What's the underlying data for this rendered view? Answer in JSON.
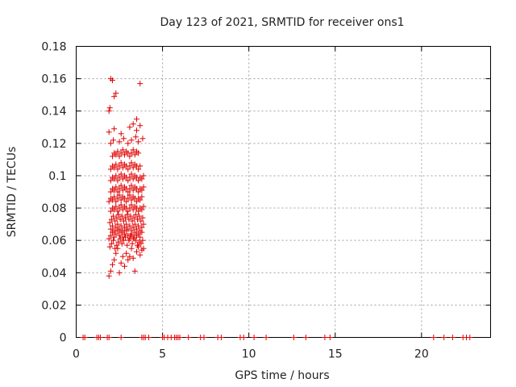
{
  "chart_data": {
    "type": "scatter",
    "title": "Day 123 of 2021, SRMTID for receiver ons1",
    "xlabel": "GPS time / hours",
    "ylabel": "SRMTID / TECUs",
    "xlim": [
      0,
      24
    ],
    "ylim": [
      0,
      0.18
    ],
    "xticks": [
      0,
      5,
      10,
      15,
      20
    ],
    "xtick_labels": [
      "0",
      "5",
      "10",
      "15",
      "20"
    ],
    "yticks": [
      0,
      0.02,
      0.04,
      0.06,
      0.08,
      0.1,
      0.12,
      0.14,
      0.16,
      0.18
    ],
    "ytick_labels": [
      "0",
      "0.02",
      "0.04",
      "0.06",
      "0.08",
      "0.1",
      "0.12",
      "0.14",
      "0.16",
      "0.18"
    ],
    "grid": true,
    "marker": "+",
    "colors": {
      "points": "#e00000",
      "grid": "#a0a0a0",
      "axes": "#000000"
    },
    "series": [
      {
        "x": [
          0.4,
          0.5,
          1.2,
          1.3,
          1.4,
          1.8,
          1.9,
          2.6,
          3.8,
          3.9,
          4.0,
          4.2,
          5.0,
          5.1,
          5.3,
          5.5,
          5.7,
          5.8,
          5.9,
          6.0,
          6.5,
          7.2,
          7.4,
          8.2,
          8.4,
          9.5,
          9.7,
          10.3,
          11.0,
          12.6,
          13.3,
          14.4,
          14.7,
          20.7,
          21.3,
          21.8,
          22.4,
          22.6,
          22.8,
          1.9,
          2.0,
          2.1,
          2.2,
          2.3,
          2.4,
          2.5,
          2.6,
          2.7,
          2.8,
          2.9,
          3.0,
          3.1,
          3.2,
          3.3,
          3.4,
          3.5,
          3.6,
          3.7,
          3.8,
          3.9,
          1.95,
          2.05,
          2.15,
          2.25,
          2.35,
          2.45,
          2.55,
          2.65,
          2.75,
          2.85,
          2.95,
          3.05,
          3.15,
          3.25,
          3.35,
          3.45,
          3.55,
          3.65,
          3.75,
          3.85,
          1.9,
          2.0,
          2.1,
          2.2,
          2.3,
          2.4,
          2.5,
          2.6,
          2.7,
          2.8,
          2.9,
          3.0,
          3.1,
          3.2,
          3.3,
          3.4,
          3.5,
          3.6,
          3.7,
          3.8,
          2.0,
          2.1,
          2.2,
          2.3,
          2.4,
          2.5,
          2.6,
          2.7,
          2.8,
          2.9,
          3.0,
          3.1,
          3.2,
          3.3,
          3.4,
          3.5,
          3.6,
          3.7,
          3.8,
          3.9,
          1.95,
          2.05,
          2.15,
          2.25,
          2.35,
          2.45,
          2.55,
          2.65,
          2.75,
          2.85,
          2.95,
          3.05,
          3.15,
          3.25,
          3.35,
          3.45,
          3.55,
          3.65,
          3.75,
          3.85,
          2.0,
          2.1,
          2.2,
          2.3,
          2.4,
          2.5,
          2.6,
          2.7,
          2.8,
          2.9,
          3.0,
          3.1,
          3.2,
          3.3,
          3.4,
          3.5,
          3.6,
          3.7,
          3.8,
          3.9,
          1.9,
          2.0,
          2.1,
          2.2,
          2.3,
          2.4,
          2.5,
          2.6,
          2.7,
          2.8,
          2.9,
          3.0,
          3.1,
          3.2,
          3.3,
          3.4,
          3.5,
          3.6,
          3.7,
          3.8,
          2.0,
          2.1,
          2.2,
          2.3,
          2.4,
          2.5,
          2.6,
          2.7,
          2.8,
          2.9,
          3.0,
          3.1,
          3.2,
          3.3,
          3.4,
          3.5,
          3.6,
          3.7,
          3.8,
          3.9,
          2.0,
          2.1,
          2.2,
          2.3,
          2.4,
          2.5,
          2.6,
          2.7,
          2.8,
          2.9,
          3.0,
          3.1,
          3.2,
          3.3,
          3.4,
          3.5,
          3.6,
          3.7,
          3.8,
          3.9,
          2.0,
          2.1,
          2.2,
          2.3,
          2.4,
          2.5,
          2.6,
          2.7,
          2.8,
          2.9,
          3.0,
          3.1,
          3.2,
          3.3,
          3.4,
          3.5,
          3.6,
          3.7,
          2.1,
          2.2,
          2.3,
          2.4,
          2.5,
          2.6,
          2.7,
          2.8,
          2.9,
          3.0,
          3.1,
          3.2,
          3.3,
          3.4,
          3.5,
          3.6,
          2.0,
          2.15,
          2.5,
          2.75,
          3.0,
          3.2,
          3.45,
          3.6,
          3.85,
          1.9,
          2.2,
          2.6,
          3.1,
          3.5,
          3.7,
          1.9,
          1.95,
          2.2,
          2.3,
          3.3,
          3.5,
          2.0,
          2.1,
          3.7
        ],
        "y": [
          0,
          0,
          0,
          0,
          0,
          0,
          0,
          0,
          0,
          0,
          0,
          0,
          0,
          0,
          0,
          0,
          0,
          0,
          0,
          0,
          0,
          0,
          0,
          0,
          0,
          0,
          0,
          0,
          0,
          0,
          0,
          0,
          0,
          0,
          0,
          0,
          0,
          0,
          0,
          0.038,
          0.041,
          0.045,
          0.048,
          0.052,
          0.055,
          0.04,
          0.046,
          0.05,
          0.044,
          0.052,
          0.048,
          0.05,
          0.055,
          0.049,
          0.041,
          0.053,
          0.056,
          0.051,
          0.054,
          0.055,
          0.056,
          0.058,
          0.06,
          0.055,
          0.057,
          0.059,
          0.061,
          0.058,
          0.06,
          0.062,
          0.057,
          0.06,
          0.063,
          0.058,
          0.061,
          0.06,
          0.057,
          0.059,
          0.058,
          0.06,
          0.061,
          0.063,
          0.065,
          0.062,
          0.064,
          0.066,
          0.063,
          0.065,
          0.062,
          0.064,
          0.066,
          0.063,
          0.061,
          0.064,
          0.062,
          0.065,
          0.063,
          0.064,
          0.062,
          0.065,
          0.067,
          0.069,
          0.066,
          0.068,
          0.07,
          0.067,
          0.069,
          0.066,
          0.068,
          0.07,
          0.067,
          0.069,
          0.066,
          0.068,
          0.07,
          0.067,
          0.069,
          0.066,
          0.068,
          0.07,
          0.071,
          0.073,
          0.075,
          0.072,
          0.074,
          0.076,
          0.073,
          0.075,
          0.072,
          0.074,
          0.076,
          0.073,
          0.075,
          0.072,
          0.074,
          0.076,
          0.073,
          0.075,
          0.072,
          0.074,
          0.078,
          0.08,
          0.079,
          0.081,
          0.078,
          0.08,
          0.082,
          0.079,
          0.081,
          0.08,
          0.078,
          0.08,
          0.082,
          0.079,
          0.081,
          0.08,
          0.078,
          0.08,
          0.079,
          0.081,
          0.084,
          0.086,
          0.085,
          0.087,
          0.084,
          0.086,
          0.088,
          0.085,
          0.087,
          0.086,
          0.084,
          0.086,
          0.088,
          0.085,
          0.087,
          0.086,
          0.084,
          0.086,
          0.085,
          0.087,
          0.09,
          0.092,
          0.091,
          0.093,
          0.09,
          0.092,
          0.094,
          0.091,
          0.093,
          0.092,
          0.09,
          0.092,
          0.094,
          0.091,
          0.093,
          0.092,
          0.09,
          0.092,
          0.091,
          0.093,
          0.097,
          0.099,
          0.098,
          0.1,
          0.097,
          0.099,
          0.101,
          0.098,
          0.1,
          0.099,
          0.097,
          0.099,
          0.101,
          0.098,
          0.1,
          0.099,
          0.097,
          0.099,
          0.098,
          0.1,
          0.104,
          0.106,
          0.105,
          0.107,
          0.104,
          0.106,
          0.108,
          0.105,
          0.107,
          0.106,
          0.104,
          0.106,
          0.108,
          0.105,
          0.107,
          0.106,
          0.104,
          0.106,
          0.112,
          0.114,
          0.113,
          0.115,
          0.112,
          0.114,
          0.116,
          0.113,
          0.115,
          0.114,
          0.112,
          0.114,
          0.116,
          0.113,
          0.115,
          0.114,
          0.12,
          0.122,
          0.121,
          0.123,
          0.12,
          0.122,
          0.124,
          0.121,
          0.123,
          0.127,
          0.129,
          0.126,
          0.13,
          0.128,
          0.131,
          0.14,
          0.142,
          0.149,
          0.151,
          0.132,
          0.135,
          0.16,
          0.159,
          0.157
        ]
      }
    ]
  }
}
